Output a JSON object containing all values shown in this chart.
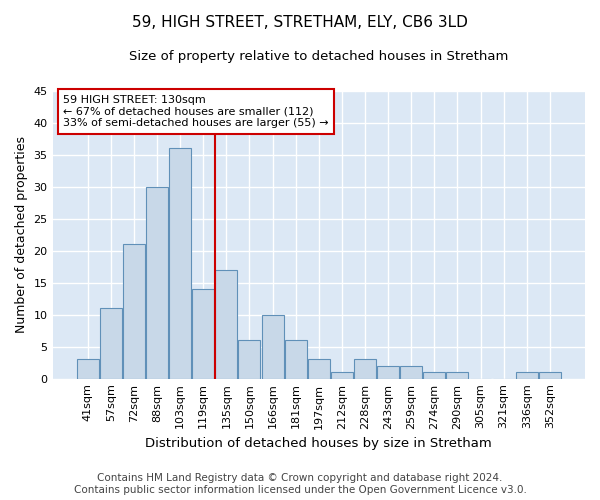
{
  "title": "59, HIGH STREET, STRETHAM, ELY, CB6 3LD",
  "subtitle": "Size of property relative to detached houses in Stretham",
  "xlabel": "Distribution of detached houses by size in Stretham",
  "ylabel": "Number of detached properties",
  "categories": [
    "41sqm",
    "57sqm",
    "72sqm",
    "88sqm",
    "103sqm",
    "119sqm",
    "135sqm",
    "150sqm",
    "166sqm",
    "181sqm",
    "197sqm",
    "212sqm",
    "228sqm",
    "243sqm",
    "259sqm",
    "274sqm",
    "290sqm",
    "305sqm",
    "321sqm",
    "336sqm",
    "352sqm"
  ],
  "values": [
    3,
    11,
    21,
    30,
    36,
    14,
    17,
    6,
    10,
    6,
    3,
    1,
    3,
    2,
    2,
    1,
    1,
    0,
    0,
    1,
    1
  ],
  "bar_color": "#c8d8e8",
  "bar_edge_color": "#6090b8",
  "vline_color": "#cc0000",
  "vline_position": 5.5,
  "ylim": [
    0,
    45
  ],
  "yticks": [
    0,
    5,
    10,
    15,
    20,
    25,
    30,
    35,
    40,
    45
  ],
  "annotation_title": "59 HIGH STREET: 130sqm",
  "annotation_line1": "← 67% of detached houses are smaller (112)",
  "annotation_line2": "33% of semi-detached houses are larger (55) →",
  "annotation_box_facecolor": "#ffffff",
  "annotation_box_edgecolor": "#cc0000",
  "footer_line1": "Contains HM Land Registry data © Crown copyright and database right 2024.",
  "footer_line2": "Contains public sector information licensed under the Open Government Licence v3.0.",
  "plot_bg_color": "#dce8f5",
  "fig_bg_color": "#ffffff",
  "grid_color": "#ffffff",
  "title_fontsize": 11,
  "subtitle_fontsize": 9.5,
  "tick_fontsize": 8,
  "ylabel_fontsize": 9,
  "xlabel_fontsize": 9.5,
  "annotation_fontsize": 8,
  "footer_fontsize": 7.5
}
